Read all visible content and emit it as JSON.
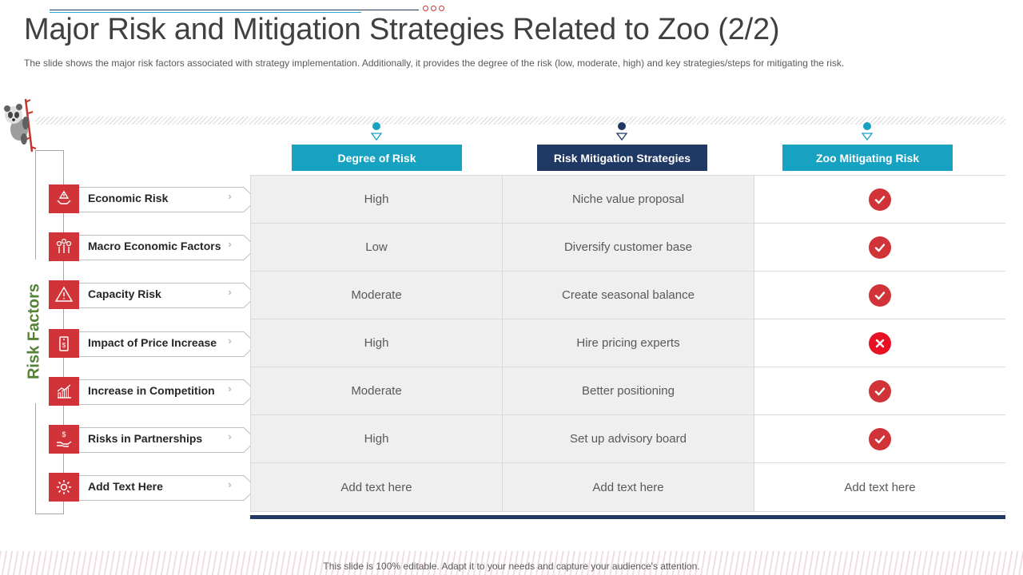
{
  "slide": {
    "title": "Major Risk and Mitigation Strategies Related to Zoo (2/2)",
    "subtitle": "The slide shows the major risk factors associated with strategy implementation. Additionally, it provides  the degree of the risk (low, moderate,  high) and key strategies/steps for  mitigating the risk.",
    "side_label": "Risk Factors",
    "footer": "This slide is 100% editable. Adapt it to your needs and capture your audience's attention."
  },
  "colors": {
    "accent_red": "#d13438",
    "teal": "#17a2c2",
    "navy": "#203864",
    "green": "#548235"
  },
  "columns": [
    {
      "label": "Degree of Risk",
      "color": "#17a2c2"
    },
    {
      "label": "Risk Mitigation Strategies",
      "color": "#203864"
    },
    {
      "label": "Zoo Mitigating Risk",
      "color": "#17a2c2"
    }
  ],
  "rows": [
    {
      "factor": "Economic Risk",
      "icon": "hands-warning-icon",
      "degree": "High",
      "strategy": "Niche value proposal",
      "status": "check"
    },
    {
      "factor": "Macro Economic Factors",
      "icon": "people-bubbles-icon",
      "degree": "Low",
      "strategy": "Diversify customer base",
      "status": "check"
    },
    {
      "factor": "Capacity Risk",
      "icon": "warning-triangle-icon",
      "degree": "Moderate",
      "strategy": "Create seasonal balance",
      "status": "check"
    },
    {
      "factor": "Impact of Price Increase",
      "icon": "price-tag-icon",
      "degree": "High",
      "strategy": "Hire pricing experts",
      "status": "cross"
    },
    {
      "factor": "Increase in Competition",
      "icon": "bar-chart-icon",
      "degree": "Moderate",
      "strategy": "Better positioning",
      "status": "check"
    },
    {
      "factor": "Risks in Partnerships",
      "icon": "hand-dollar-icon",
      "degree": "High",
      "strategy": "Set up advisory board",
      "status": "check"
    },
    {
      "factor": "Add Text Here",
      "icon": "gear-icon",
      "degree": "Add text here",
      "strategy": "Add text here",
      "status": "text",
      "status_text": "Add text here"
    }
  ]
}
